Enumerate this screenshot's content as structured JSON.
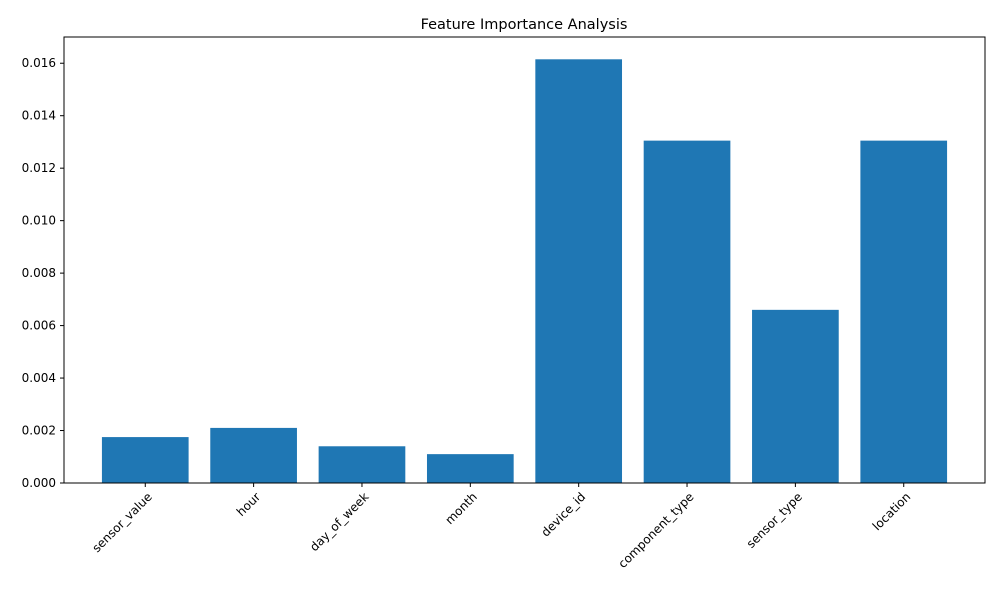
{
  "chart_data": {
    "type": "bar",
    "title": "Feature Importance Analysis",
    "xlabel": "",
    "ylabel": "",
    "categories": [
      "sensor_value",
      "hour",
      "day_of_week",
      "month",
      "device_id",
      "component_type",
      "sensor_type",
      "location"
    ],
    "values": [
      0.00175,
      0.0021,
      0.0014,
      0.0011,
      0.01615,
      0.01305,
      0.0066,
      0.01305
    ],
    "ylim": [
      0,
      0.017
    ],
    "yticks": [
      "0.000",
      "0.002",
      "0.004",
      "0.006",
      "0.008",
      "0.010",
      "0.012",
      "0.014",
      "0.016"
    ],
    "bar_color": "#1f77b4",
    "grid": false,
    "legend": "none",
    "xtick_rotation_deg": 45
  }
}
